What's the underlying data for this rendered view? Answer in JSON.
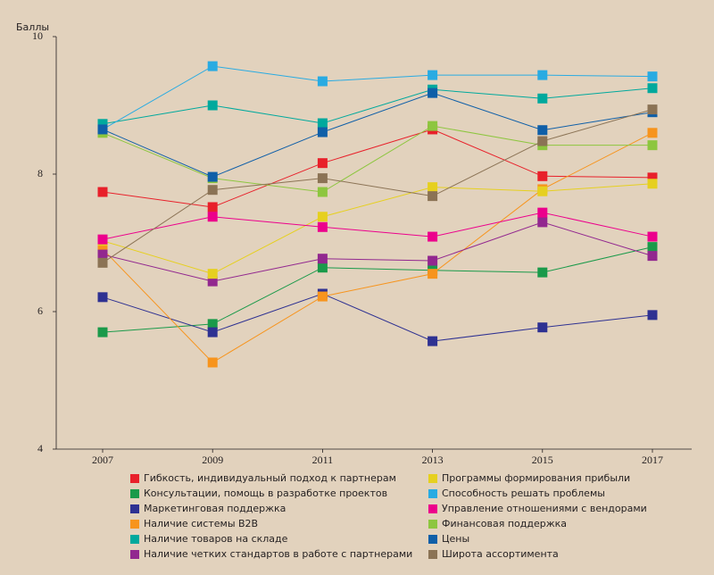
{
  "chart_data": {
    "type": "line",
    "y_label": "Баллы",
    "categories": [
      "2007",
      "2009",
      "2011",
      "2013",
      "2015",
      "2017"
    ],
    "ylim": [
      4,
      10
    ],
    "yticks": [
      4,
      6,
      8,
      10
    ],
    "series": [
      {
        "name": "Гибкость, индивидуальный подход к партнерам",
        "color": "#e8202a",
        "values": [
          7.74,
          7.52,
          8.16,
          8.65,
          7.97,
          7.95
        ]
      },
      {
        "name": "Консультации, помощь в разработке проектов",
        "color": "#1a9a4a",
        "values": [
          5.7,
          5.82,
          6.64,
          6.6,
          6.57,
          6.94
        ]
      },
      {
        "name": "Маркетинговая поддержка",
        "color": "#2e3192",
        "values": [
          6.21,
          5.7,
          6.26,
          5.57,
          5.77,
          5.95
        ]
      },
      {
        "name": "Наличие системы B2B",
        "color": "#f7941d",
        "values": [
          6.91,
          5.26,
          6.22,
          6.55,
          7.78,
          8.6
        ]
      },
      {
        "name": "Наличие товаров на складе",
        "color": "#00a99d",
        "values": [
          8.73,
          9.0,
          8.74,
          9.23,
          9.1,
          9.25
        ]
      },
      {
        "name": "Наличие четких стандартов в работе с партнерами",
        "color": "#92278f",
        "values": [
          6.83,
          6.44,
          6.77,
          6.74,
          7.3,
          6.81
        ]
      },
      {
        "name": "Программы формирования прибыли",
        "color": "#e6d01f",
        "values": [
          7.03,
          6.55,
          7.38,
          7.81,
          7.75,
          7.86
        ]
      },
      {
        "name": "Способность решать проблемы",
        "color": "#29abe2",
        "values": [
          8.65,
          9.57,
          9.35,
          9.44,
          9.44,
          9.42
        ]
      },
      {
        "name": "Управление отношениями с вендорами",
        "color": "#ec008c",
        "values": [
          7.05,
          7.38,
          7.23,
          7.09,
          7.44,
          7.09
        ]
      },
      {
        "name": "Финансовая поддержка",
        "color": "#8dc63f",
        "values": [
          8.6,
          7.94,
          7.74,
          8.7,
          8.42,
          8.42
        ]
      },
      {
        "name": "Цены",
        "color": "#0f5fa8",
        "values": [
          8.65,
          7.96,
          8.61,
          9.18,
          8.64,
          8.9
        ]
      },
      {
        "name": "Широта ассортимента",
        "color": "#8b7355",
        "values": [
          6.71,
          7.77,
          7.94,
          7.68,
          8.48,
          8.94
        ]
      }
    ]
  }
}
